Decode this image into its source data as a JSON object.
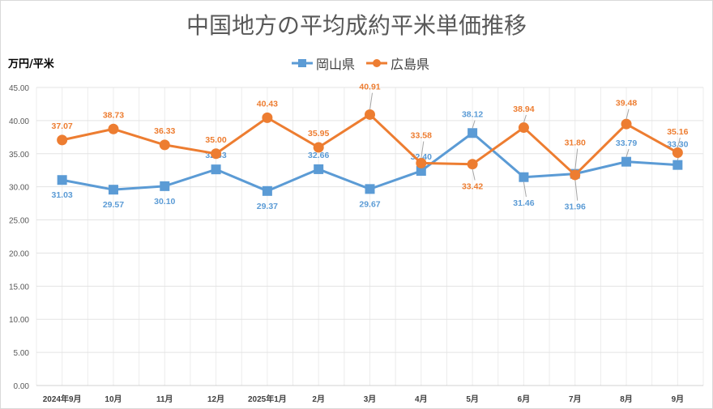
{
  "chart_data": {
    "type": "line",
    "title": "中国地方の平均成約平米単価推移",
    "ylabel": "万円/平米",
    "xlabel": "",
    "ylim": [
      0,
      45
    ],
    "yticks": [
      "0.00",
      "5.00",
      "10.00",
      "15.00",
      "20.00",
      "25.00",
      "30.00",
      "35.00",
      "40.00",
      "45.00"
    ],
    "categories": [
      "2024年9月",
      "10月",
      "11月",
      "12月",
      "2025年1月",
      "2月",
      "3月",
      "4月",
      "5月",
      "6月",
      "7月",
      "8月",
      "9月"
    ],
    "grid": true,
    "legend_position": "top-center",
    "series": [
      {
        "name": "岡山県",
        "color": "#5B9BD5",
        "marker": "square",
        "values": [
          31.03,
          29.57,
          30.1,
          32.63,
          29.37,
          32.66,
          29.67,
          32.4,
          38.12,
          31.46,
          31.96,
          33.79,
          33.3
        ],
        "labels": [
          "31.03",
          "29.57",
          "30.10",
          "32.63",
          "29.37",
          "32.66",
          "29.67",
          "32.40",
          "38.12",
          "31.46",
          "31.96",
          "33.79",
          "33.30"
        ]
      },
      {
        "name": "広島県",
        "color": "#ED7D31",
        "marker": "circle",
        "values": [
          37.07,
          38.73,
          36.33,
          35.0,
          40.43,
          35.95,
          40.91,
          33.58,
          33.42,
          38.94,
          31.8,
          39.48,
          35.16
        ],
        "labels": [
          "37.07",
          "38.73",
          "36.33",
          "35.00",
          "40.43",
          "35.95",
          "40.91",
          "33.58",
          "33.42",
          "38.94",
          "31.80",
          "39.48",
          "35.16"
        ]
      }
    ]
  }
}
